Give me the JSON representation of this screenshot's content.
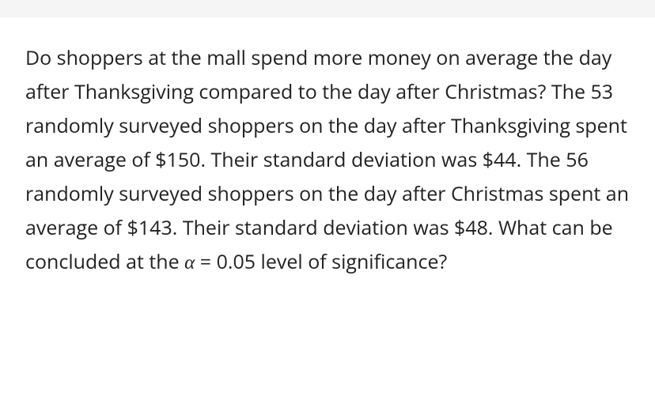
{
  "question": {
    "text_part1": "Do shoppers at the mall spend more money on average the day after Thanksgiving compared to the day after Christmas? The 53 randomly surveyed shoppers on the day after Thanksgiving spent an average of $150. Their standard deviation was $44. The 56 randomly surveyed shoppers on the day after Christmas spent an average of $143. Their standard deviation was $48. What can be concluded at the ",
    "alpha_symbol": "α",
    "text_part2": " = 0.05 level of significance?"
  },
  "styling": {
    "background_color": "#ffffff",
    "top_bar_color": "#f5f5f6",
    "text_color": "#222222",
    "font_size": 25,
    "line_height": 1.72
  }
}
